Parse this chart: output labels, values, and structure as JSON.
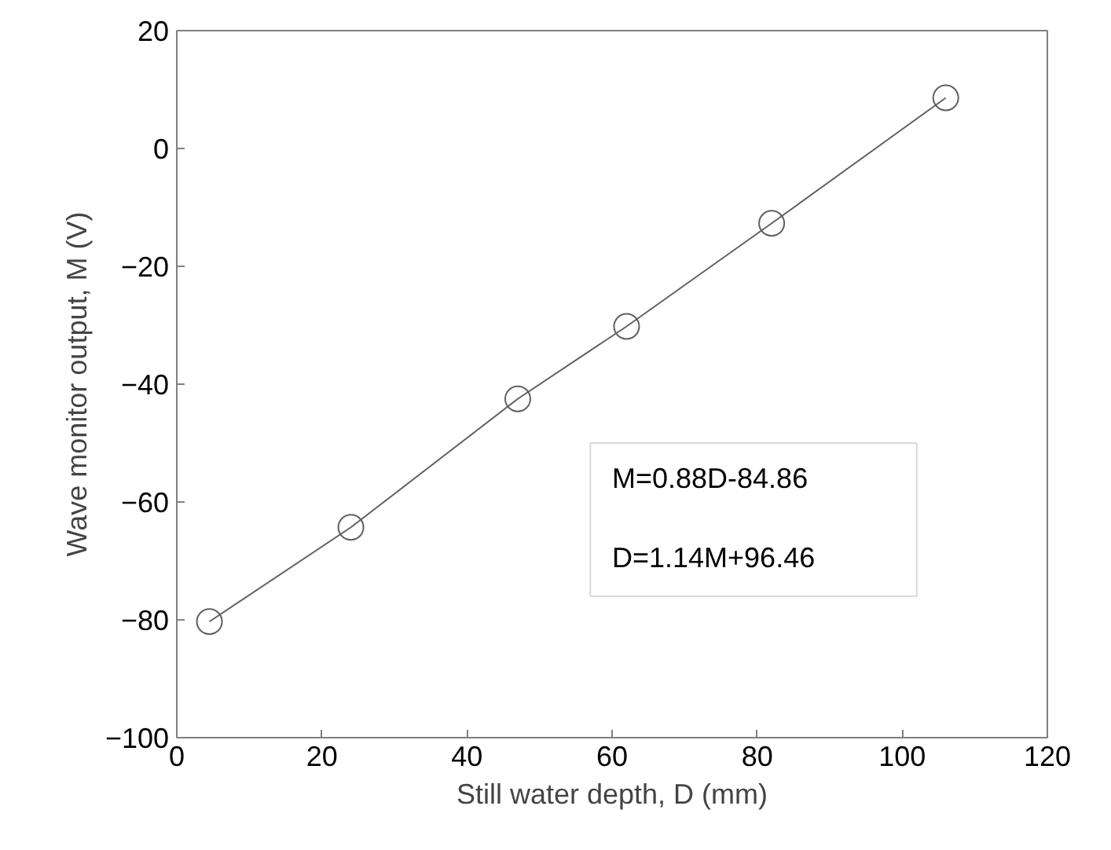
{
  "chart_data": {
    "type": "line",
    "xlabel": "Still water depth, D (mm)",
    "ylabel": "Wave monitor output, M (V)",
    "x": [
      4.5,
      24,
      47,
      62,
      82,
      106
    ],
    "series": [
      {
        "color": "#606060",
        "values": [
          -80.3,
          -64.3,
          -42.5,
          -30.2,
          -12.7,
          8.6
        ]
      }
    ],
    "marker": "circle",
    "xlim": [
      0,
      120
    ],
    "xticks": [
      0,
      20,
      40,
      60,
      80,
      100,
      120
    ],
    "ylim": [
      -100,
      20
    ],
    "yticks": [
      -100,
      -80,
      -60,
      -40,
      -20,
      0,
      20
    ],
    "annotations": [
      "M=0.88D-84.86",
      "D=1.14M+96.46"
    ],
    "grid": false
  }
}
